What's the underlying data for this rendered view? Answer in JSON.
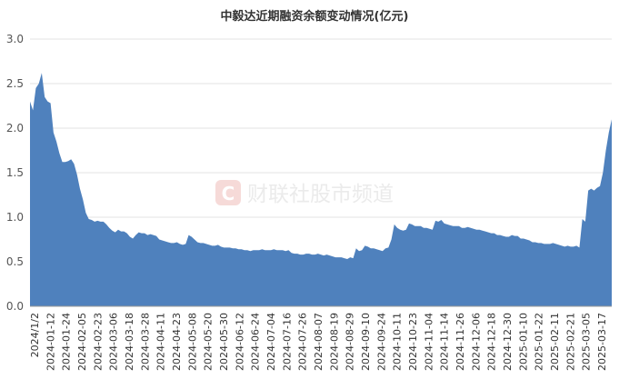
{
  "chart_data": {
    "type": "area",
    "title": "中毅达近期融资余额变动情况(亿元)",
    "xlabel": "",
    "ylabel": "",
    "ylim": [
      0,
      3.0
    ],
    "yticks": [
      "0.0",
      "0.5",
      "1.0",
      "1.5",
      "2.0",
      "2.5",
      "3.0"
    ],
    "grid": true,
    "legend": "none",
    "watermark": "财联社股市频道",
    "watermark_logo": "C",
    "colors": {
      "area": "#4f81bd",
      "grid": "#e3e3e3",
      "watermark": "#ebebeb"
    },
    "xtick_labels": [
      "2024/1/2",
      "2024-01-12",
      "2024-01-24",
      "2024-02-05",
      "2024-02-23",
      "2024-03-06",
      "2024-03-18",
      "2024-03-28",
      "2024-04-11",
      "2024-04-23",
      "2024-05-08",
      "2024-05-20",
      "2024-05-30",
      "2024-06-12",
      "2024-06-24",
      "2024-07-04",
      "2024-07-16",
      "2024-07-26",
      "2024-08-07",
      "2024-08-19",
      "2024-08-29",
      "2024-09-10",
      "2024-09-24",
      "2024-10-11",
      "2024-10-23",
      "2024-11-04",
      "2024-11-14",
      "2024-11-26",
      "2024-12-06",
      "2024-12-18",
      "2024-12-30",
      "2025-01-10",
      "2025-01-22",
      "2025-02-11",
      "2025-02-21",
      "2025-03-05",
      "2025-03-17"
    ],
    "values": [
      2.3,
      2.2,
      2.45,
      2.5,
      2.62,
      2.35,
      2.3,
      2.28,
      1.95,
      1.85,
      1.72,
      1.62,
      1.62,
      1.63,
      1.65,
      1.6,
      1.48,
      1.32,
      1.2,
      1.05,
      0.98,
      0.97,
      0.95,
      0.96,
      0.95,
      0.95,
      0.92,
      0.88,
      0.85,
      0.83,
      0.86,
      0.84,
      0.84,
      0.82,
      0.78,
      0.76,
      0.8,
      0.83,
      0.82,
      0.82,
      0.8,
      0.81,
      0.8,
      0.79,
      0.75,
      0.74,
      0.73,
      0.72,
      0.71,
      0.71,
      0.72,
      0.7,
      0.69,
      0.7,
      0.8,
      0.78,
      0.75,
      0.72,
      0.71,
      0.71,
      0.7,
      0.69,
      0.68,
      0.68,
      0.69,
      0.67,
      0.66,
      0.66,
      0.66,
      0.65,
      0.65,
      0.64,
      0.64,
      0.63,
      0.63,
      0.62,
      0.63,
      0.63,
      0.63,
      0.64,
      0.63,
      0.63,
      0.63,
      0.64,
      0.63,
      0.63,
      0.63,
      0.62,
      0.63,
      0.6,
      0.59,
      0.59,
      0.58,
      0.58,
      0.59,
      0.59,
      0.58,
      0.58,
      0.59,
      0.58,
      0.57,
      0.58,
      0.57,
      0.56,
      0.55,
      0.55,
      0.55,
      0.54,
      0.53,
      0.55,
      0.54,
      0.65,
      0.62,
      0.63,
      0.68,
      0.67,
      0.65,
      0.65,
      0.64,
      0.63,
      0.62,
      0.65,
      0.66,
      0.75,
      0.92,
      0.88,
      0.86,
      0.85,
      0.86,
      0.93,
      0.92,
      0.9,
      0.9,
      0.9,
      0.88,
      0.88,
      0.87,
      0.86,
      0.96,
      0.95,
      0.97,
      0.93,
      0.92,
      0.91,
      0.9,
      0.9,
      0.9,
      0.88,
      0.88,
      0.89,
      0.88,
      0.87,
      0.86,
      0.86,
      0.85,
      0.84,
      0.83,
      0.82,
      0.82,
      0.8,
      0.8,
      0.79,
      0.78,
      0.78,
      0.8,
      0.79,
      0.79,
      0.76,
      0.76,
      0.75,
      0.74,
      0.72,
      0.72,
      0.71,
      0.71,
      0.7,
      0.7,
      0.7,
      0.71,
      0.7,
      0.69,
      0.68,
      0.67,
      0.68,
      0.67,
      0.67,
      0.68,
      0.66,
      0.98,
      0.95,
      1.3,
      1.32,
      1.3,
      1.33,
      1.35,
      1.5,
      1.75,
      1.95,
      2.1
    ]
  }
}
